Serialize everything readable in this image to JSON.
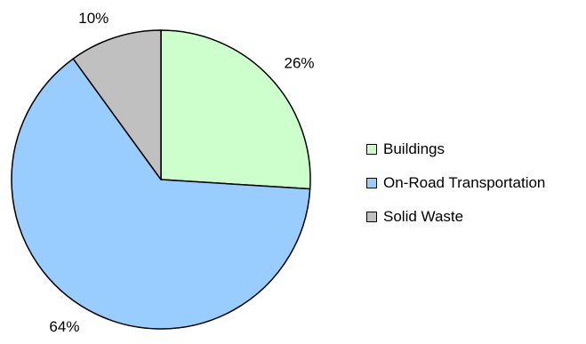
{
  "chart_data": {
    "type": "pie",
    "title": "",
    "categories": [
      "Buildings",
      "On-Road Transportation",
      "Solid Waste"
    ],
    "values": [
      26,
      64,
      10
    ],
    "value_labels": [
      "26%",
      "64%",
      "10%"
    ],
    "colors": [
      "#ccffcc",
      "#99ccff",
      "#c0c0c0"
    ],
    "legend_position": "right"
  }
}
